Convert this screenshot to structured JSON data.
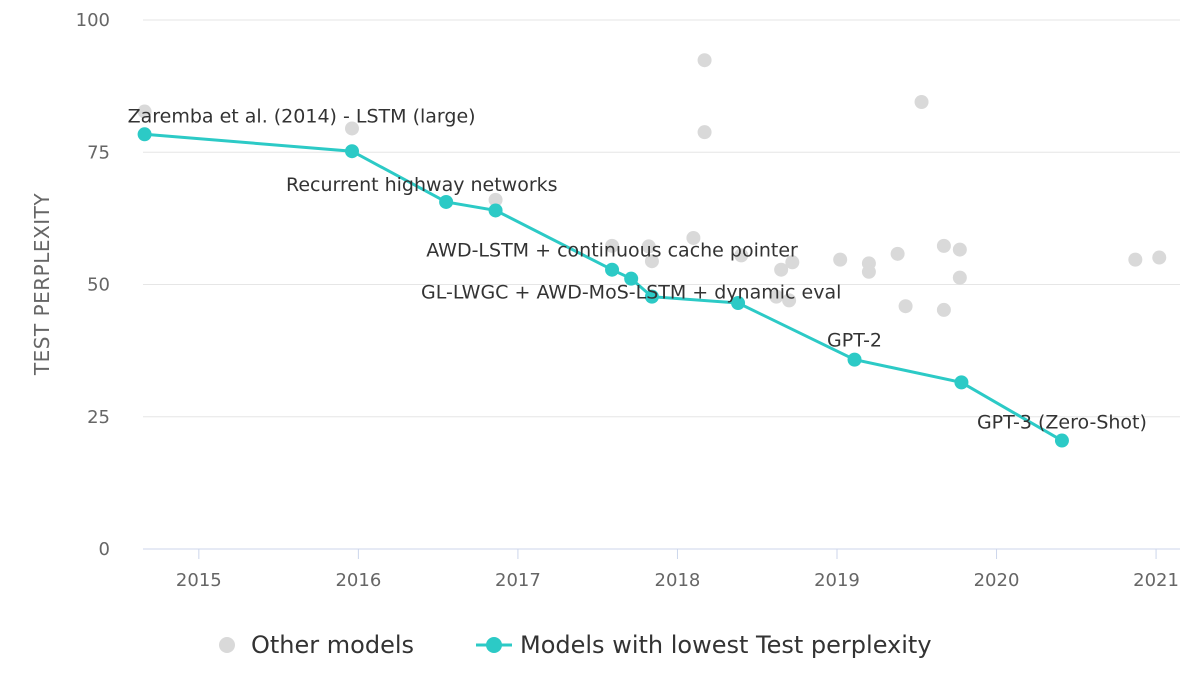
{
  "chart_data": {
    "type": "scatter",
    "title": "",
    "xlabel": "",
    "ylabel": "TEST PERPLEXITY",
    "xlim": [
      2014.65,
      2021.15
    ],
    "ylim": [
      0,
      100
    ],
    "x_ticks": [
      2015,
      2016,
      2017,
      2018,
      2019,
      2020,
      2021
    ],
    "y_ticks": [
      0,
      25,
      50,
      75,
      100
    ],
    "grid": true,
    "legend_position": "bottom-center",
    "colors": {
      "other": "#d9d9d9",
      "best": "#2ccac6",
      "grid": "#e6e6e6",
      "axis": "#ccd6eb",
      "label": "#666666",
      "text": "#333333"
    },
    "series": [
      {
        "name": "Other models",
        "kind": "scatter",
        "points": [
          {
            "x": 2014.66,
            "y": 82.7
          },
          {
            "x": 2015.96,
            "y": 79.5
          },
          {
            "x": 2016.86,
            "y": 66.0
          },
          {
            "x": 2017.59,
            "y": 57.3
          },
          {
            "x": 2017.82,
            "y": 57.2
          },
          {
            "x": 2017.84,
            "y": 54.4
          },
          {
            "x": 2018.1,
            "y": 58.8
          },
          {
            "x": 2018.17,
            "y": 92.4
          },
          {
            "x": 2018.17,
            "y": 78.8
          },
          {
            "x": 2018.4,
            "y": 55.5
          },
          {
            "x": 2018.62,
            "y": 47.7
          },
          {
            "x": 2018.65,
            "y": 52.8
          },
          {
            "x": 2018.7,
            "y": 47.0
          },
          {
            "x": 2018.72,
            "y": 54.2
          },
          {
            "x": 2019.02,
            "y": 54.7
          },
          {
            "x": 2019.2,
            "y": 54.0
          },
          {
            "x": 2019.2,
            "y": 52.4
          },
          {
            "x": 2019.38,
            "y": 55.8
          },
          {
            "x": 2019.43,
            "y": 45.9
          },
          {
            "x": 2019.53,
            "y": 84.5
          },
          {
            "x": 2019.67,
            "y": 57.3
          },
          {
            "x": 2019.67,
            "y": 45.2
          },
          {
            "x": 2019.77,
            "y": 56.6
          },
          {
            "x": 2019.77,
            "y": 51.3
          },
          {
            "x": 2020.87,
            "y": 54.7
          },
          {
            "x": 2021.02,
            "y": 55.1
          }
        ]
      },
      {
        "name": "Models with lowest Test perplexity",
        "kind": "line",
        "points": [
          {
            "x": 2014.66,
            "y": 78.4
          },
          {
            "x": 2015.96,
            "y": 75.2
          },
          {
            "x": 2016.55,
            "y": 65.6
          },
          {
            "x": 2016.86,
            "y": 64.0
          },
          {
            "x": 2017.59,
            "y": 52.8
          },
          {
            "x": 2017.71,
            "y": 51.1
          },
          {
            "x": 2017.84,
            "y": 47.7
          },
          {
            "x": 2018.38,
            "y": 46.5
          },
          {
            "x": 2019.11,
            "y": 35.8
          },
          {
            "x": 2019.78,
            "y": 31.5
          },
          {
            "x": 2020.41,
            "y": 20.5
          }
        ]
      }
    ],
    "annotations": [
      {
        "text": "Zaremba et al. (2014) - LSTM (large)",
        "x": 2014.66,
        "y": 78.4,
        "anchor": "start"
      },
      {
        "text": "Recurrent highway networks",
        "x": 2015.96,
        "y": 75.2,
        "anchor": "start-below"
      },
      {
        "text": "AWD-LSTM + continuous cache pointer",
        "x": 2017.59,
        "y": 52.8,
        "anchor": "center-above"
      },
      {
        "text": "GL-LWGC + AWD-MoS-LSTM + dynamic eval",
        "x": 2017.71,
        "y": 51.1,
        "anchor": "center-below"
      },
      {
        "text": "GPT-2",
        "x": 2019.11,
        "y": 35.8,
        "anchor": "center-above"
      },
      {
        "text": "GPT-3 (Zero-Shot)",
        "x": 2020.41,
        "y": 20.5,
        "anchor": "center-above"
      }
    ]
  }
}
